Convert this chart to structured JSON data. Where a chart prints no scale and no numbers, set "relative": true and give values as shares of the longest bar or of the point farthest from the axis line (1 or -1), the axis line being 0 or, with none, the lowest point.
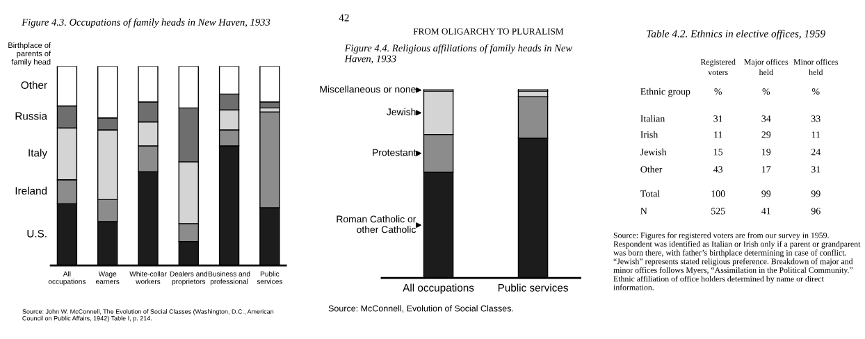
{
  "chart_data": [
    {
      "type": "bar",
      "stacked": true,
      "relative": true,
      "legend": false,
      "title": "Figure 4.3. Occupations of family heads in New Haven, 1933",
      "ylabel": "Birthplace of\nparents of\nfamily head",
      "categories": [
        "All\noccupations",
        "Wage\nearners",
        "White-collar\nworkers",
        "Dealers and\nproprietors",
        "Business and\nprofessional",
        "Public\nservices"
      ],
      "series": [
        {
          "name": "U.S.",
          "color": "#1c1c1c",
          "values": [
            0.31,
            0.22,
            0.47,
            0.12,
            0.6,
            0.29
          ]
        },
        {
          "name": "Ireland",
          "color": "#8c8c8c",
          "values": [
            0.12,
            0.11,
            0.13,
            0.09,
            0.08,
            0.48
          ]
        },
        {
          "name": "Italy",
          "color": "#d4d4d4",
          "values": [
            0.26,
            0.35,
            0.12,
            0.31,
            0.1,
            0.02
          ]
        },
        {
          "name": "Russia",
          "color": "#6e6e6e",
          "values": [
            0.11,
            0.06,
            0.1,
            0.27,
            0.08,
            0.03
          ]
        },
        {
          "name": "Other",
          "color": "#ffffff",
          "values": [
            0.2,
            0.26,
            0.18,
            0.21,
            0.14,
            0.18
          ]
        }
      ],
      "annotations": [
        "Source: John W. McConnell, The Evolution of Social Classes (Washington, D.C., American Council on Public Affairs, 1942) Table I, p. 214."
      ]
    },
    {
      "type": "bar",
      "stacked": true,
      "relative": true,
      "legend": "left",
      "title": "Figure 4.4. Religious affiliations of family heads in New Haven, 1933",
      "categories": [
        "All occupations",
        "Public services"
      ],
      "series": [
        {
          "name": "Roman Catholic or\nother Catholic",
          "color": "#1c1c1c",
          "values": [
            0.56,
            0.74
          ]
        },
        {
          "name": "Protestant",
          "color": "#8c8c8c",
          "values": [
            0.2,
            0.22
          ]
        },
        {
          "name": "Jewish",
          "color": "#d4d4d4",
          "values": [
            0.23,
            0.03
          ]
        },
        {
          "name": "Miscellaneous or none",
          "color": "#ffffff",
          "values": [
            0.01,
            0.01
          ]
        }
      ],
      "annotations": [
        "42",
        "FROM OLIGARCHY TO PLURALISM",
        "Source: McConnell, Evolution of Social Classes."
      ]
    },
    {
      "type": "other",
      "title": "Table 4.2. Ethnics in elective offices, 1959",
      "categories": [
        "Registered\nvoters",
        "Major offices\nheld",
        "Minor offices\nheld"
      ],
      "y_categories": [
        "Ethnic group",
        "Italian",
        "Irish",
        "Jewish",
        "Other",
        "Total",
        "N"
      ],
      "cell_labels": [
        [
          "%",
          "%",
          "%"
        ],
        [
          "31",
          "34",
          "33"
        ],
        [
          "11",
          "29",
          "11"
        ],
        [
          "15",
          "19",
          "24"
        ],
        [
          "43",
          "17",
          "31"
        ],
        [
          "100",
          "99",
          "99"
        ],
        [
          "525",
          "41",
          "96"
        ]
      ],
      "annotations": [
        "Source: Figures for registered voters are from our survey in 1959. Respondent was identified as Italian or Irish only if a parent or grandparent was born there, with father’s birthplace determining in case of conflict. “Jewish” represents stated religious preference. Breakdown of major and minor offices follows Myers, “Assimilation in the Political Community.” Ethnic affiliation of office holders determined by name or direct information."
      ]
    }
  ]
}
